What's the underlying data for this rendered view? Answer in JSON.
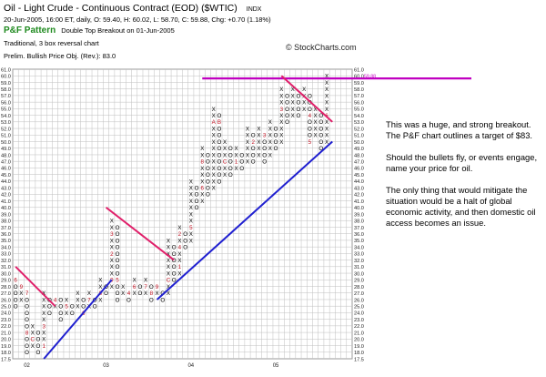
{
  "header": {
    "title": "Oil - Light Crude - Continuous Contract (EOD) ($WTIC)",
    "exchange": "INDX",
    "date_line": "20-Jun-2005, 16:00 ET, daily, O: 59.40, H: 60.02, L: 58.70, C: 59.88, Chg: +0.70 (1.18%)",
    "pattern_label": "P&F Pattern",
    "pattern_desc": "Double Top Breakout on 01-Jun-2005",
    "method_line": "Traditional, 3 box reversal chart",
    "target_line": "Prelim. Bullish Price Obj. (Rev.): 83.0"
  },
  "watermark": "© StockCharts.com",
  "annotation": {
    "p1": "This was a huge, and strong breakout.  The P&F chart outlines a target of $83.",
    "p2": "Should the bullets fly, or events engage, name your price for oil.",
    "p3": "The only thing that would mitigate the situation would be a halt of global  economic activity, and then domestic oil access becomes an issue."
  },
  "chart_data": {
    "type": "point-and-figure",
    "box_size": 1.0,
    "reversal": 3,
    "y_range": [
      17.5,
      61.0
    ],
    "y_ticks": [
      17.5,
      18.0,
      19.0,
      20.0,
      21.0,
      22.0,
      23.0,
      24.0,
      25.0,
      26.0,
      27.0,
      28.0,
      29.0,
      30.0,
      31.0,
      32.0,
      33.0,
      34.0,
      35.0,
      36.0,
      37.0,
      38.0,
      39.0,
      40.0,
      41.0,
      42.0,
      43.0,
      44.0,
      45.0,
      46.0,
      47.0,
      48.0,
      49.0,
      50.0,
      51.0,
      52.0,
      53.0,
      54.0,
      55.0,
      56.0,
      57.0,
      58.0,
      59.0,
      60.0,
      61.0
    ],
    "tick_labels_left": [
      "17.5",
      "18.0",
      "19.0",
      "20.0",
      "21.0",
      "22.0",
      "23.0",
      "24.0",
      "25.0",
      "26.0",
      "27.0",
      "28.0",
      "29.0",
      "30.0",
      "31.0",
      "32.0",
      "33.0",
      "34.0",
      "35.0",
      "36.0",
      "37.0",
      "38.0",
      "39.0",
      "40.0",
      "41.0",
      "42.0",
      "43.0",
      "44.0",
      "45.0",
      "46.0",
      "47.0",
      "48.0",
      "49.0",
      "50.0",
      "51.0",
      "52.0",
      "53.0",
      "54.0",
      "55.0",
      "56.0",
      "57.0",
      "58.0",
      "59.0",
      "60.0",
      "61.0"
    ],
    "tick_labels_right": [
      "17.5",
      "18.0",
      "19.0",
      "20.0",
      "21.0",
      "22.0",
      "23.0",
      "24.0",
      "25.0",
      "26.0",
      "27.0",
      "28.0",
      "29.0",
      "30.0",
      "31.0",
      "32.0",
      "33.0",
      "34.0",
      "35.0",
      "36.0",
      "37.0",
      "38.0",
      "39.0",
      "40.0",
      "41.0",
      "42.0",
      "43.0",
      "44.0",
      "45.0",
      "46.0",
      "47.0",
      "48.0",
      "49.0",
      "50.0",
      "51.0",
      "52.0",
      "53.0",
      "54.0",
      "55.0",
      "56.0",
      "57.0",
      "58.0",
      "59.0",
      "60.0",
      "61.0"
    ],
    "right_highlight_label": "59.88",
    "x_labels": [
      {
        "col": 2,
        "text": "02"
      },
      {
        "col": 16,
        "text": "03"
      },
      {
        "col": 31,
        "text": "04"
      },
      {
        "col": 46,
        "text": "05"
      }
    ],
    "n_columns": 60,
    "columns": [
      {
        "col": 0,
        "type": "O",
        "top": 29.0,
        "bottom": 25.0
      },
      {
        "col": 1,
        "type": "X",
        "top": 28.0,
        "bottom": 26.0
      },
      {
        "col": 2,
        "type": "O",
        "top": 27.0,
        "bottom": 18.0
      },
      {
        "col": 3,
        "type": "X",
        "top": 22.0,
        "bottom": 19.0
      },
      {
        "col": 4,
        "type": "O",
        "top": 21.0,
        "bottom": 18.0
      },
      {
        "col": 5,
        "type": "X",
        "top": 27.0,
        "bottom": 19.0
      },
      {
        "col": 6,
        "type": "O",
        "top": 26.0,
        "bottom": 24.0
      },
      {
        "col": 7,
        "type": "X",
        "top": 26.0,
        "bottom": 25.0
      },
      {
        "col": 8,
        "type": "O",
        "top": 26.0,
        "bottom": 23.0
      },
      {
        "col": 9,
        "type": "X",
        "top": 26.0,
        "bottom": 24.0
      },
      {
        "col": 10,
        "type": "O",
        "top": 25.0,
        "bottom": 24.0
      },
      {
        "col": 11,
        "type": "X",
        "top": 27.0,
        "bottom": 25.0
      },
      {
        "col": 12,
        "type": "O",
        "top": 26.0,
        "bottom": 24.0
      },
      {
        "col": 13,
        "type": "X",
        "top": 27.0,
        "bottom": 25.0
      },
      {
        "col": 14,
        "type": "O",
        "top": 26.0,
        "bottom": 25.0
      },
      {
        "col": 15,
        "type": "X",
        "top": 29.0,
        "bottom": 26.0
      },
      {
        "col": 16,
        "type": "O",
        "top": 28.0,
        "bottom": 27.0
      },
      {
        "col": 17,
        "type": "X",
        "top": 38.0,
        "bottom": 28.0
      },
      {
        "col": 18,
        "type": "O",
        "top": 37.0,
        "bottom": 26.0
      },
      {
        "col": 19,
        "type": "X",
        "top": 28.0,
        "bottom": 27.0
      },
      {
        "col": 20,
        "type": "O",
        "top": 27.0,
        "bottom": 26.0
      },
      {
        "col": 21,
        "type": "X",
        "top": 29.0,
        "bottom": 27.0
      },
      {
        "col": 22,
        "type": "O",
        "top": 28.0,
        "bottom": 27.0
      },
      {
        "col": 23,
        "type": "X",
        "top": 29.0,
        "bottom": 27.0
      },
      {
        "col": 24,
        "type": "O",
        "top": 28.0,
        "bottom": 26.0
      },
      {
        "col": 25,
        "type": "X",
        "top": 28.0,
        "bottom": 27.0
      },
      {
        "col": 26,
        "type": "O",
        "top": 27.0,
        "bottom": 26.0
      },
      {
        "col": 27,
        "type": "X",
        "top": 35.0,
        "bottom": 27.0
      },
      {
        "col": 28,
        "type": "O",
        "top": 34.0,
        "bottom": 29.0
      },
      {
        "col": 29,
        "type": "X",
        "top": 37.0,
        "bottom": 30.0
      },
      {
        "col": 30,
        "type": "O",
        "top": 36.0,
        "bottom": 34.0
      },
      {
        "col": 31,
        "type": "X",
        "top": 44.0,
        "bottom": 35.0
      },
      {
        "col": 32,
        "type": "O",
        "top": 43.0,
        "bottom": 40.0
      },
      {
        "col": 33,
        "type": "X",
        "top": 49.0,
        "bottom": 41.0
      },
      {
        "col": 34,
        "type": "O",
        "top": 48.0,
        "bottom": 42.0
      },
      {
        "col": 35,
        "type": "X",
        "top": 55.0,
        "bottom": 43.0
      },
      {
        "col": 36,
        "type": "O",
        "top": 54.0,
        "bottom": 44.0
      },
      {
        "col": 37,
        "type": "X",
        "top": 50.0,
        "bottom": 45.0
      },
      {
        "col": 38,
        "type": "O",
        "top": 49.0,
        "bottom": 45.0
      },
      {
        "col": 39,
        "type": "X",
        "top": 49.0,
        "bottom": 46.0
      },
      {
        "col": 40,
        "type": "O",
        "top": 48.0,
        "bottom": 46.0
      },
      {
        "col": 41,
        "type": "X",
        "top": 52.0,
        "bottom": 47.0
      },
      {
        "col": 42,
        "type": "O",
        "top": 51.0,
        "bottom": 47.0
      },
      {
        "col": 43,
        "type": "X",
        "top": 52.0,
        "bottom": 48.0
      },
      {
        "col": 44,
        "type": "O",
        "top": 51.0,
        "bottom": 47.0
      },
      {
        "col": 45,
        "type": "X",
        "top": 53.0,
        "bottom": 48.0
      },
      {
        "col": 46,
        "type": "O",
        "top": 52.0,
        "bottom": 49.0
      },
      {
        "col": 47,
        "type": "X",
        "top": 58.0,
        "bottom": 50.0
      },
      {
        "col": 48,
        "type": "O",
        "top": 57.0,
        "bottom": 53.0
      },
      {
        "col": 49,
        "type": "X",
        "top": 58.0,
        "bottom": 54.0
      },
      {
        "col": 50,
        "type": "O",
        "top": 57.0,
        "bottom": 54.0
      },
      {
        "col": 51,
        "type": "X",
        "top": 58.0,
        "bottom": 55.0
      },
      {
        "col": 52,
        "type": "O",
        "top": 57.0,
        "bottom": 50.0
      },
      {
        "col": 53,
        "type": "X",
        "top": 55.0,
        "bottom": 51.0
      },
      {
        "col": 54,
        "type": "O",
        "top": 54.0,
        "bottom": 49.0
      },
      {
        "col": 55,
        "type": "X",
        "top": 60.0,
        "bottom": 50.0
      }
    ],
    "month_markers": [
      {
        "col": 0,
        "price": 29.0,
        "text": "6"
      },
      {
        "col": 1,
        "price": 28.0,
        "text": "9"
      },
      {
        "col": 2,
        "price": 27.0,
        "text": "7"
      },
      {
        "col": 2,
        "price": 21.0,
        "text": "8"
      },
      {
        "col": 3,
        "price": 20.0,
        "text": "C"
      },
      {
        "col": 5,
        "price": 19.0,
        "text": "1"
      },
      {
        "col": 5,
        "price": 22.0,
        "text": "3"
      },
      {
        "col": 7,
        "price": 26.0,
        "text": "4"
      },
      {
        "col": 9,
        "price": 25.0,
        "text": "5"
      },
      {
        "col": 12,
        "price": 24.0,
        "text": "6"
      },
      {
        "col": 13,
        "price": 26.0,
        "text": "7"
      },
      {
        "col": 15,
        "price": 27.0,
        "text": "8"
      },
      {
        "col": 17,
        "price": 29.0,
        "text": "9"
      },
      {
        "col": 17,
        "price": 33.0,
        "text": "2"
      },
      {
        "col": 17,
        "price": 36.0,
        "text": "3"
      },
      {
        "col": 18,
        "price": 29.0,
        "text": "5"
      },
      {
        "col": 20,
        "price": 27.0,
        "text": "4"
      },
      {
        "col": 21,
        "price": 28.0,
        "text": "6"
      },
      {
        "col": 23,
        "price": 28.0,
        "text": "7"
      },
      {
        "col": 24,
        "price": 27.0,
        "text": "8"
      },
      {
        "col": 25,
        "price": 28.0,
        "text": "9"
      },
      {
        "col": 26,
        "price": 28.0,
        "text": "B"
      },
      {
        "col": 27,
        "price": 29.0,
        "text": "C"
      },
      {
        "col": 29,
        "price": 31.0,
        "text": "1"
      },
      {
        "col": 29,
        "price": 34.0,
        "text": "4"
      },
      {
        "col": 29,
        "price": 36.0,
        "text": "2"
      },
      {
        "col": 31,
        "price": 37.0,
        "text": "5"
      },
      {
        "col": 33,
        "price": 43.0,
        "text": "6"
      },
      {
        "col": 33,
        "price": 47.0,
        "text": "8"
      },
      {
        "col": 35,
        "price": 53.0,
        "text": "A"
      },
      {
        "col": 36,
        "price": 53.0,
        "text": "B"
      },
      {
        "col": 37,
        "price": 47.0,
        "text": "C"
      },
      {
        "col": 39,
        "price": 47.0,
        "text": "1"
      },
      {
        "col": 42,
        "price": 50.0,
        "text": "2"
      },
      {
        "col": 44,
        "price": 51.0,
        "text": "3"
      },
      {
        "col": 47,
        "price": 55.0,
        "text": "3"
      },
      {
        "col": 52,
        "price": 54.0,
        "text": "4"
      },
      {
        "col": 52,
        "price": 50.0,
        "text": "5"
      },
      {
        "col": 55,
        "price": 54.0,
        "text": "6"
      }
    ],
    "trendlines": [
      {
        "color": "#2020d0",
        "kind": "support",
        "from": {
          "col": 5,
          "price": 17.5
        },
        "to": {
          "col": 17,
          "price": 29.0
        }
      },
      {
        "color": "#2020d0",
        "kind": "support",
        "from": {
          "col": 25,
          "price": 26.0
        },
        "to": {
          "col": 56,
          "price": 50.0
        }
      },
      {
        "color": "#e0206a",
        "kind": "resistance",
        "from": {
          "col": 0,
          "price": 31.0
        },
        "to": {
          "col": 7,
          "price": 25.0
        }
      },
      {
        "color": "#e0206a",
        "kind": "resistance",
        "from": {
          "col": 16,
          "price": 40.0
        },
        "to": {
          "col": 28,
          "price": 32.0
        }
      },
      {
        "color": "#e0206a",
        "kind": "resistance",
        "from": {
          "col": 47,
          "price": 60.0
        },
        "to": {
          "col": 56,
          "price": 53.0
        }
      }
    ],
    "horizontal_line": {
      "price": 59.6,
      "color": "#c000c0",
      "from_col": 33
    },
    "colors": {
      "x_mark": "#000000",
      "o_mark": "#000000",
      "month_marker": "#c01020",
      "grid": "#bfbfbf",
      "highlight_label": "#c000c0"
    }
  }
}
